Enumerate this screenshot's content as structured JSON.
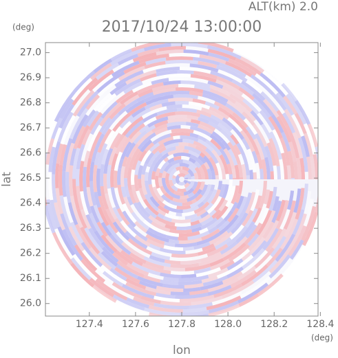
{
  "chart_data": {
    "type": "radar-field",
    "title": "2017/10/24 13:00:00",
    "subtitle": "ALT(km) 2.0",
    "x_label": "lon",
    "y_label": "lat",
    "x_unit": "(deg)",
    "y_unit": "(deg)",
    "xlim": [
      127.21,
      128.39
    ],
    "ylim": [
      25.95,
      27.04
    ],
    "xticks": [
      127.4,
      127.6,
      127.8,
      {
        "value": 128.0,
        "label": "128.0"
      },
      128.2,
      128.4
    ],
    "yticks": [
      {
        "value": 26.0,
        "label": "26.0"
      },
      26.1,
      26.2,
      26.3,
      26.4,
      26.5,
      26.6,
      26.7,
      26.8,
      26.9,
      {
        "value": 27.0,
        "label": "27.0"
      }
    ]
  }
}
